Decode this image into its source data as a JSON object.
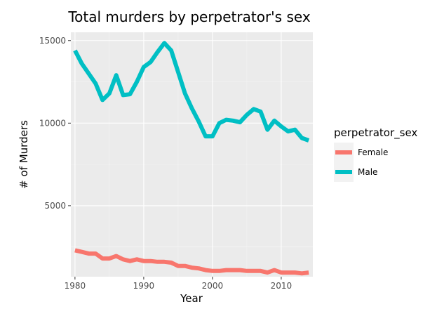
{
  "chart_data": {
    "type": "line",
    "title": "Total murders by perpetrator's sex",
    "xlabel": "Year",
    "ylabel": "# of Murders",
    "xlim": [
      1979.4,
      2014.6
    ],
    "ylim": [
      700,
      15500
    ],
    "x_ticks": [
      1980,
      1990,
      2000,
      2010
    ],
    "y_ticks": [
      5000,
      10000,
      15000
    ],
    "x_minor": [
      1985,
      1995,
      2005
    ],
    "y_minor": [
      2500,
      7500,
      12500
    ],
    "grid": true,
    "legend_position": "right",
    "legend_title": "perpetrator_sex",
    "x": [
      1980,
      1981,
      1982,
      1983,
      1984,
      1985,
      1986,
      1987,
      1988,
      1989,
      1990,
      1991,
      1992,
      1993,
      1994,
      1995,
      1996,
      1997,
      1998,
      1999,
      2000,
      2001,
      2002,
      2003,
      2004,
      2005,
      2006,
      2007,
      2008,
      2009,
      2010,
      2011,
      2012,
      2013,
      2014
    ],
    "series": [
      {
        "name": "Female",
        "color": "#F8766D",
        "values": [
          2300,
          2200,
          2100,
          2100,
          1800,
          1800,
          1950,
          1750,
          1650,
          1750,
          1650,
          1650,
          1600,
          1600,
          1550,
          1350,
          1350,
          1250,
          1200,
          1100,
          1050,
          1050,
          1100,
          1100,
          1100,
          1050,
          1050,
          1050,
          950,
          1100,
          950,
          950,
          950,
          900,
          950
        ]
      },
      {
        "name": "Male",
        "color": "#00BFC4",
        "values": [
          14400,
          13600,
          13000,
          12400,
          11400,
          11800,
          12900,
          11700,
          11750,
          12500,
          13400,
          13700,
          14300,
          14850,
          14400,
          13100,
          11800,
          10900,
          10100,
          9200,
          9200,
          10000,
          10200,
          10150,
          10050,
          10500,
          10850,
          10700,
          9600,
          10150,
          9800,
          9500,
          9600,
          9100,
          8950
        ]
      }
    ]
  }
}
